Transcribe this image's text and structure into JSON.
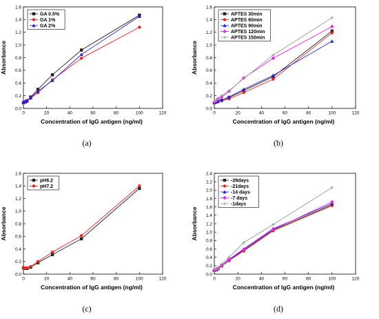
{
  "chart_data": [
    {
      "panel_label": "(a)",
      "type": "line",
      "xlabel": "Concentration of IgG antigen (ng/ml)",
      "ylabel": "Absorbance",
      "xlim": [
        0,
        120
      ],
      "ylim": [
        0,
        1.6
      ],
      "xticks": [
        "0",
        "20",
        "40",
        "60",
        "80",
        "100",
        "120"
      ],
      "yticks": [
        "0.0",
        "0.2",
        "0.4",
        "0.6",
        "0.8",
        "1.0",
        "1.2",
        "1.4",
        "1.6"
      ],
      "legend_position": "top-left",
      "series": [
        {
          "name": "GA 0.5%",
          "color": "#222222",
          "marker": "square",
          "x": [
            0,
            1.56,
            3.125,
            6.25,
            12.5,
            25,
            50,
            100
          ],
          "y": [
            0.09,
            0.1,
            0.12,
            0.18,
            0.3,
            0.53,
            0.92,
            1.47
          ]
        },
        {
          "name": "GA 1%",
          "color": "#ee2222",
          "marker": "circle",
          "x": [
            0,
            1.56,
            3.125,
            6.25,
            12.5,
            25,
            50,
            100
          ],
          "y": [
            0.09,
            0.1,
            0.11,
            0.16,
            0.25,
            0.45,
            0.79,
            1.28
          ]
        },
        {
          "name": "GA 2%",
          "color": "#2222dd",
          "marker": "triangle",
          "x": [
            0,
            1.56,
            3.125,
            6.25,
            12.5,
            25,
            50,
            100
          ],
          "y": [
            0.1,
            0.11,
            0.12,
            0.17,
            0.27,
            0.44,
            0.85,
            1.45
          ]
        }
      ]
    },
    {
      "panel_label": "(b)",
      "type": "line",
      "xlabel": "Concentration of IgG antigen (ng/ml)",
      "ylabel": "Absorbance",
      "xlim": [
        0,
        120
      ],
      "ylim": [
        0,
        1.6
      ],
      "xticks": [
        "0",
        "20",
        "40",
        "60",
        "80",
        "100",
        "120"
      ],
      "yticks": [
        "0.0",
        "0.2",
        "0.4",
        "0.6",
        "0.8",
        "1.0",
        "1.2",
        "1.4",
        "1.6"
      ],
      "legend_position": "top-left",
      "series": [
        {
          "name": "APTES 30min",
          "color": "#222222",
          "marker": "square",
          "x": [
            0,
            1.56,
            3.125,
            6.25,
            12.5,
            25,
            50,
            100
          ],
          "y": [
            0.09,
            0.1,
            0.11,
            0.13,
            0.17,
            0.28,
            0.5,
            1.22
          ]
        },
        {
          "name": "APTES 60min",
          "color": "#ee2222",
          "marker": "circle",
          "x": [
            0,
            1.56,
            3.125,
            6.25,
            12.5,
            25,
            50,
            100
          ],
          "y": [
            0.09,
            0.1,
            0.11,
            0.12,
            0.15,
            0.25,
            0.46,
            1.19
          ]
        },
        {
          "name": "APTES 90min",
          "color": "#2222dd",
          "marker": "triangle",
          "x": [
            0,
            1.56,
            3.125,
            6.25,
            12.5,
            25,
            50,
            100
          ],
          "y": [
            0.09,
            0.1,
            0.11,
            0.13,
            0.18,
            0.3,
            0.52,
            1.06
          ]
        },
        {
          "name": "APTES 120min",
          "color": "#ee22ee",
          "marker": "diamond",
          "x": [
            0,
            1.56,
            3.125,
            6.25,
            12.5,
            25,
            50,
            100
          ],
          "y": [
            0.1,
            0.12,
            0.15,
            0.18,
            0.27,
            0.48,
            0.79,
            1.29
          ]
        },
        {
          "name": "APTES 150min",
          "color": "#999999",
          "marker": "plus",
          "x": [
            0,
            1.56,
            3.125,
            6.25,
            12.5,
            25,
            50,
            100
          ],
          "y": [
            0.11,
            0.13,
            0.16,
            0.2,
            0.28,
            0.47,
            0.84,
            1.43
          ]
        }
      ]
    },
    {
      "panel_label": "(c)",
      "type": "line",
      "xlabel": "Concentration of IgG antigen (ng/ml)",
      "ylabel": "Absorbance",
      "xlim": [
        0,
        120
      ],
      "ylim": [
        0,
        1.6
      ],
      "xticks": [
        "0",
        "20",
        "40",
        "60",
        "80",
        "100",
        "120"
      ],
      "yticks": [
        "0.0",
        "0.2",
        "0.4",
        "0.6",
        "0.8",
        "1.0",
        "1.2",
        "1.4",
        "1.6"
      ],
      "legend_position": "top-left",
      "series": [
        {
          "name": "pH6.2",
          "color": "#222222",
          "marker": "square",
          "x": [
            0,
            1.56,
            3.125,
            6.25,
            12.5,
            25,
            50,
            100
          ],
          "y": [
            0.1,
            0.09,
            0.09,
            0.11,
            0.18,
            0.31,
            0.56,
            1.36
          ]
        },
        {
          "name": "pH7.2",
          "color": "#ee2222",
          "marker": "circle",
          "x": [
            0,
            1.56,
            3.125,
            6.25,
            12.5,
            25,
            50,
            100
          ],
          "y": [
            0.1,
            0.09,
            0.1,
            0.12,
            0.2,
            0.35,
            0.61,
            1.4
          ]
        }
      ]
    },
    {
      "panel_label": "(d)",
      "type": "line",
      "xlabel": "Concentration of IgG antigen (ng/ml)",
      "ylabel": "Absorbance",
      "xlim": [
        0,
        120
      ],
      "ylim": [
        0,
        2.4
      ],
      "xticks": [
        "0",
        "20",
        "40",
        "60",
        "80",
        "100",
        "120"
      ],
      "yticks": [
        "0.0",
        "0.2",
        "0.4",
        "0.6",
        "0.8",
        "1.0",
        "1.2",
        "1.4",
        "1.6",
        "1.8",
        "2.0",
        "2.2",
        "2.4"
      ],
      "legend_position": "top-left",
      "series": [
        {
          "name": "-28days",
          "color": "#222222",
          "marker": "square",
          "x": [
            0,
            1.56,
            3.125,
            6.25,
            12.5,
            25,
            50,
            100
          ],
          "y": [
            0.09,
            0.1,
            0.13,
            0.2,
            0.33,
            0.56,
            1.05,
            1.65
          ]
        },
        {
          "name": "-21days",
          "color": "#ee2222",
          "marker": "circle",
          "x": [
            0,
            1.56,
            3.125,
            6.25,
            12.5,
            25,
            50,
            100
          ],
          "y": [
            0.09,
            0.1,
            0.12,
            0.19,
            0.32,
            0.55,
            1.03,
            1.63
          ]
        },
        {
          "name": "-14 days",
          "color": "#2222dd",
          "marker": "triangle",
          "x": [
            0,
            1.56,
            3.125,
            6.25,
            12.5,
            25,
            50,
            100
          ],
          "y": [
            0.1,
            0.11,
            0.14,
            0.21,
            0.35,
            0.6,
            1.08,
            1.68
          ]
        },
        {
          "name": "-7 days",
          "color": "#ee22ee",
          "marker": "diamond",
          "x": [
            0,
            1.56,
            3.125,
            6.25,
            12.5,
            25,
            50,
            100
          ],
          "y": [
            0.1,
            0.11,
            0.14,
            0.2,
            0.34,
            0.58,
            1.06,
            1.72
          ]
        },
        {
          "name": "-1days",
          "color": "#999999",
          "marker": "plus",
          "x": [
            0,
            1.56,
            3.125,
            6.25,
            12.5,
            25,
            50,
            100
          ],
          "y": [
            0.11,
            0.12,
            0.16,
            0.24,
            0.4,
            0.75,
            1.18,
            2.06
          ]
        }
      ]
    }
  ]
}
